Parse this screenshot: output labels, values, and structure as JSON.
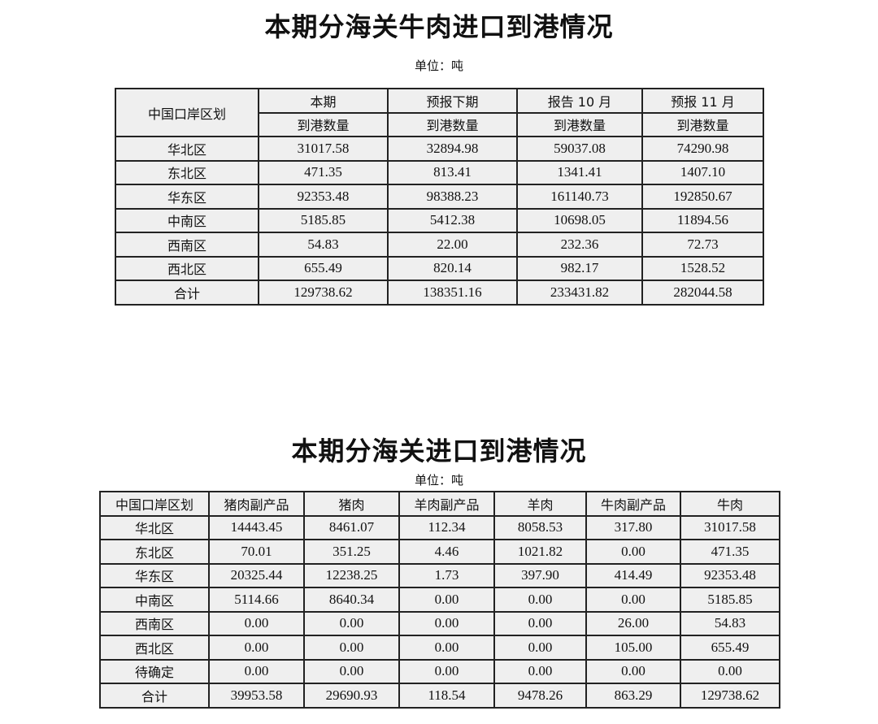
{
  "table1": {
    "title": "本期分海关牛肉进口到港情况",
    "unit": "单位：吨",
    "region_header": "中国口岸区划",
    "period_headers": [
      "本期",
      "预报下期",
      "报告 10 月",
      "预报 11 月"
    ],
    "sub_header": "到港数量",
    "rows": [
      {
        "region": "华北区",
        "values": [
          "31017.58",
          "32894.98",
          "59037.08",
          "74290.98"
        ]
      },
      {
        "region": "东北区",
        "values": [
          "471.35",
          "813.41",
          "1341.41",
          "1407.10"
        ]
      },
      {
        "region": "华东区",
        "values": [
          "92353.48",
          "98388.23",
          "161140.73",
          "192850.67"
        ]
      },
      {
        "region": "中南区",
        "values": [
          "5185.85",
          "5412.38",
          "10698.05",
          "11894.56"
        ]
      },
      {
        "region": "西南区",
        "values": [
          "54.83",
          "22.00",
          "232.36",
          "72.73"
        ]
      },
      {
        "region": "西北区",
        "values": [
          "655.49",
          "820.14",
          "982.17",
          "1528.52"
        ]
      },
      {
        "region": "合计",
        "values": [
          "129738.62",
          "138351.16",
          "233431.82",
          "282044.58"
        ]
      }
    ]
  },
  "table2": {
    "title": "本期分海关进口到港情况",
    "unit": "单位：吨",
    "headers": [
      "中国口岸区划",
      "猪肉副产品",
      "猪肉",
      "羊肉副产品",
      "羊肉",
      "牛肉副产品",
      "牛肉"
    ],
    "rows": [
      {
        "region": "华北区",
        "values": [
          "14443.45",
          "8461.07",
          "112.34",
          "8058.53",
          "317.80",
          "31017.58"
        ]
      },
      {
        "region": "东北区",
        "values": [
          "70.01",
          "351.25",
          "4.46",
          "1021.82",
          "0.00",
          "471.35"
        ]
      },
      {
        "region": "华东区",
        "values": [
          "20325.44",
          "12238.25",
          "1.73",
          "397.90",
          "414.49",
          "92353.48"
        ]
      },
      {
        "region": "中南区",
        "values": [
          "5114.66",
          "8640.34",
          "0.00",
          "0.00",
          "0.00",
          "5185.85"
        ]
      },
      {
        "region": "西南区",
        "values": [
          "0.00",
          "0.00",
          "0.00",
          "0.00",
          "26.00",
          "54.83"
        ]
      },
      {
        "region": "西北区",
        "values": [
          "0.00",
          "0.00",
          "0.00",
          "0.00",
          "105.00",
          "655.49"
        ]
      },
      {
        "region": "待确定",
        "values": [
          "0.00",
          "0.00",
          "0.00",
          "0.00",
          "0.00",
          "0.00"
        ]
      },
      {
        "region": "合计",
        "values": [
          "39953.58",
          "29690.93",
          "118.54",
          "9478.26",
          "863.29",
          "129738.62"
        ]
      }
    ]
  }
}
